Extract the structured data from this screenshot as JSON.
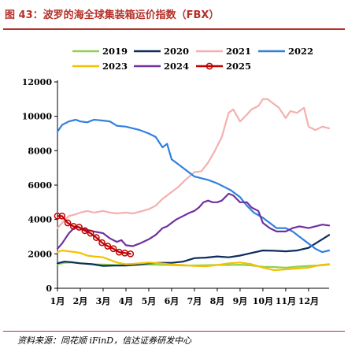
{
  "figure": {
    "title": "图 43：波罗的海全球集装箱运价指数（FBX）",
    "source": "资料来源：同花顺 iFinD，信达证券研发中心"
  },
  "chart_data": {
    "type": "line",
    "title": "",
    "xlabel": "",
    "ylabel": "",
    "ylim": [
      0,
      12000
    ],
    "yticks": [
      0,
      2000,
      4000,
      6000,
      8000,
      10000,
      12000
    ],
    "ytick_labels": [
      "0",
      "2000",
      "4000",
      "6000",
      "8000",
      "10000",
      "12000"
    ],
    "xlim": [
      1,
      12.9
    ],
    "xticks": [
      1,
      2,
      3,
      4,
      5,
      6,
      7,
      8,
      9,
      10,
      11,
      12
    ],
    "xtick_labels": [
      "1月",
      "2月",
      "3月",
      "4月",
      "5月",
      "6月",
      "7月",
      "8月",
      "9月",
      "10月",
      "11月",
      "12月"
    ],
    "grid": false,
    "legend_position": "top",
    "series": [
      {
        "name": "2019",
        "color": "#92d050",
        "marker": "none",
        "x": [
          1.0,
          1.3,
          1.6,
          2.0,
          2.5,
          3.0,
          3.5,
          4.0,
          4.5,
          5.0,
          5.5,
          6.0,
          6.5,
          7.0,
          7.5,
          8.0,
          8.5,
          9.0,
          9.5,
          10.0,
          10.5,
          11.0,
          11.5,
          12.0,
          12.5,
          12.9
        ],
        "y": [
          1400,
          1480,
          1500,
          1450,
          1400,
          1380,
          1350,
          1340,
          1350,
          1380,
          1360,
          1350,
          1320,
          1330,
          1340,
          1360,
          1350,
          1370,
          1330,
          1250,
          1230,
          1200,
          1260,
          1300,
          1330,
          1380
        ]
      },
      {
        "name": "2020",
        "color": "#0d2d5e",
        "marker": "none",
        "x": [
          1.0,
          1.3,
          1.6,
          2.0,
          2.5,
          3.0,
          3.5,
          4.0,
          4.5,
          5.0,
          5.5,
          6.0,
          6.5,
          7.0,
          7.5,
          8.0,
          8.5,
          9.0,
          9.5,
          10.0,
          10.5,
          11.0,
          11.5,
          12.0,
          12.3,
          12.6,
          12.9
        ],
        "y": [
          1450,
          1550,
          1520,
          1450,
          1400,
          1300,
          1320,
          1320,
          1380,
          1450,
          1480,
          1480,
          1550,
          1750,
          1780,
          1850,
          1800,
          1900,
          2050,
          2200,
          2180,
          2150,
          2200,
          2350,
          2600,
          2850,
          3100
        ]
      },
      {
        "name": "2021",
        "color": "#f4b0b0",
        "marker": "none",
        "x": [
          1.0,
          1.2,
          1.5,
          1.8,
          2.0,
          2.3,
          2.6,
          3.0,
          3.3,
          3.6,
          4.0,
          4.3,
          4.6,
          5.0,
          5.3,
          5.6,
          6.0,
          6.3,
          6.6,
          7.0,
          7.3,
          7.6,
          7.9,
          8.2,
          8.5,
          8.7,
          9.0,
          9.3,
          9.5,
          9.8,
          10.0,
          10.2,
          10.5,
          10.7,
          11.0,
          11.2,
          11.5,
          11.8,
          12.0,
          12.3,
          12.6,
          12.9
        ],
        "y": [
          3500,
          3800,
          4200,
          4300,
          4400,
          4500,
          4400,
          4500,
          4400,
          4350,
          4400,
          4350,
          4450,
          4600,
          4800,
          5200,
          5600,
          5900,
          6300,
          6750,
          6800,
          7300,
          8000,
          8800,
          10200,
          10400,
          9700,
          10100,
          10400,
          10600,
          11000,
          11000,
          10700,
          10500,
          9900,
          10300,
          10200,
          10500,
          9400,
          9200,
          9400,
          9300
        ]
      },
      {
        "name": "2022",
        "color": "#2f80de",
        "marker": "none",
        "x": [
          1.0,
          1.2,
          1.5,
          1.8,
          2.0,
          2.3,
          2.6,
          3.0,
          3.3,
          3.6,
          4.0,
          4.3,
          4.6,
          5.0,
          5.3,
          5.6,
          5.8,
          6.0,
          6.3,
          6.6,
          7.0,
          7.3,
          7.6,
          8.0,
          8.3,
          8.6,
          9.0,
          9.3,
          9.6,
          10.0,
          10.3,
          10.6,
          11.0,
          11.3,
          11.6,
          12.0,
          12.3,
          12.6,
          12.9
        ],
        "y": [
          9100,
          9500,
          9700,
          9800,
          9700,
          9650,
          9800,
          9750,
          9700,
          9450,
          9400,
          9300,
          9200,
          9000,
          8800,
          8200,
          8400,
          7500,
          7200,
          6900,
          6500,
          6400,
          6300,
          6100,
          5900,
          5700,
          5300,
          4800,
          4400,
          4100,
          3800,
          3500,
          3500,
          3300,
          3000,
          2600,
          2300,
          2100,
          2200
        ]
      },
      {
        "name": "2023",
        "color": "#f2c200",
        "marker": "none",
        "x": [
          1.0,
          1.2,
          1.5,
          1.8,
          2.0,
          2.3,
          2.6,
          3.0,
          3.3,
          3.6,
          4.0,
          4.3,
          4.6,
          5.0,
          5.5,
          6.0,
          6.5,
          7.0,
          7.5,
          8.0,
          8.5,
          9.0,
          9.5,
          10.0,
          10.5,
          11.0,
          11.5,
          12.0,
          12.5,
          12.9
        ],
        "y": [
          2100,
          2200,
          2150,
          2100,
          2050,
          1900,
          1850,
          1800,
          1650,
          1500,
          1400,
          1420,
          1450,
          1500,
          1450,
          1380,
          1350,
          1300,
          1280,
          1350,
          1450,
          1500,
          1400,
          1200,
          1050,
          1100,
          1150,
          1200,
          1350,
          1400
        ]
      },
      {
        "name": "2024",
        "color": "#7030a0",
        "marker": "none",
        "x": [
          1.0,
          1.2,
          1.5,
          1.8,
          2.0,
          2.3,
          2.6,
          3.0,
          3.3,
          3.6,
          3.8,
          4.0,
          4.3,
          4.6,
          5.0,
          5.3,
          5.6,
          5.8,
          6.0,
          6.2,
          6.5,
          6.8,
          7.0,
          7.2,
          7.4,
          7.6,
          7.8,
          8.0,
          8.2,
          8.5,
          8.7,
          9.0,
          9.3,
          9.5,
          9.8,
          10.0,
          10.3,
          10.6,
          11.0,
          11.3,
          11.6,
          12.0,
          12.3,
          12.6,
          12.9
        ],
        "y": [
          2300,
          2600,
          3200,
          3600,
          3500,
          3400,
          3300,
          3200,
          2900,
          2700,
          2800,
          2500,
          2450,
          2600,
          2850,
          3100,
          3500,
          3600,
          3800,
          4000,
          4200,
          4400,
          4500,
          4700,
          5000,
          5100,
          5000,
          5000,
          5100,
          5500,
          5400,
          5000,
          5000,
          4700,
          4500,
          3800,
          3500,
          3300,
          3300,
          3500,
          3600,
          3500,
          3600,
          3700,
          3650
        ]
      },
      {
        "name": "2025",
        "color": "#c00000",
        "marker": "circle",
        "x": [
          1.0,
          1.2,
          1.45,
          1.7,
          1.95,
          2.2,
          2.45,
          2.7,
          2.95,
          3.2,
          3.45,
          3.7,
          3.95,
          4.2
        ],
        "y": [
          4200,
          4200,
          3800,
          3600,
          3550,
          3350,
          3200,
          2950,
          2650,
          2450,
          2300,
          2100,
          2050,
          2000
        ]
      }
    ]
  }
}
